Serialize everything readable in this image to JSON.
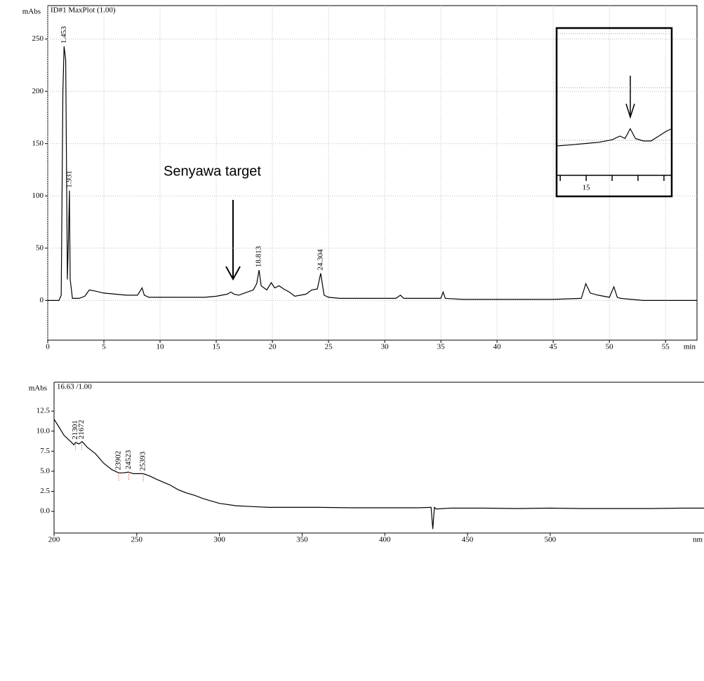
{
  "chart_data": [
    {
      "type": "line",
      "title": "ID#1 MaxPlot (1.00)",
      "y_label": "mAbs",
      "x_label": "min",
      "annotation": "Senyawa target",
      "color": "#000000",
      "grid": true,
      "xlim": [
        0,
        57.8
      ],
      "ylim": [
        -38,
        282
      ],
      "xticks": [
        0,
        5,
        10,
        15,
        20,
        25,
        30,
        35,
        40,
        45,
        50,
        55
      ],
      "yticks": [
        0,
        50,
        100,
        150,
        200,
        250
      ],
      "peaks": [
        1.453,
        1.931,
        18.813,
        24.304
      ],
      "x": [
        0,
        1.0,
        1.2,
        1.35,
        1.453,
        1.6,
        1.75,
        1.85,
        1.931,
        2.0,
        2.2,
        2.8,
        3.3,
        3.7,
        4.2,
        5,
        6,
        7,
        8,
        8.4,
        8.6,
        9,
        10,
        12,
        14,
        15,
        16,
        16.3,
        16.6,
        17,
        17.5,
        18.3,
        18.6,
        18.813,
        19.0,
        19.5,
        19.9,
        20.2,
        20.6,
        21,
        21.5,
        22,
        23,
        23.5,
        24,
        24.304,
        24.6,
        25,
        26,
        28,
        30,
        31,
        31.4,
        31.7,
        33,
        35,
        35.2,
        35.4,
        37,
        40,
        45,
        47.5,
        47.9,
        48.3,
        49,
        50,
        50.4,
        50.7,
        51,
        53,
        55,
        57.8
      ],
      "values": [
        0,
        0,
        5,
        200,
        243,
        230,
        20,
        60,
        105,
        20,
        2,
        2,
        4,
        10,
        9,
        7,
        6,
        5,
        5,
        12,
        5,
        3,
        3,
        3,
        3,
        4,
        6,
        8,
        6,
        5,
        7,
        10,
        16,
        29,
        14,
        10,
        17,
        12,
        14,
        11,
        8,
        4,
        6,
        10,
        11,
        26,
        5,
        3,
        2,
        2,
        2,
        2,
        5,
        2,
        2,
        2,
        8,
        2,
        1,
        1,
        1,
        2,
        16,
        7,
        5,
        3,
        13,
        3,
        2,
        0,
        0,
        0
      ]
    },
    {
      "type": "line",
      "color": "#000000",
      "xlim": [
        13.86,
        18.3
      ],
      "ylim": [
        -10,
        50
      ],
      "xticks": [
        15
      ],
      "xminorticks": [
        14,
        16,
        17,
        18
      ],
      "x": [
        13.86,
        14.5,
        15,
        15.5,
        16,
        16.3,
        16.5,
        16.7,
        16.9,
        17.2,
        17.5,
        17.8,
        18.1,
        18.3
      ],
      "values": [
        2,
        2.5,
        3,
        3.5,
        4.5,
        6,
        5,
        9,
        5,
        4,
        4,
        6,
        8,
        9
      ]
    },
    {
      "type": "line",
      "title": "16.63 /1.00",
      "y_label": "mAbs",
      "x_label": "nm",
      "color": "#000000",
      "grid": false,
      "xlim": [
        200,
        593
      ],
      "ylim": [
        -2.7,
        16.1
      ],
      "xticks": [
        200,
        250,
        300,
        350,
        400,
        450,
        500
      ],
      "yticks": [
        {
          "value": 0,
          "label": "0.0"
        },
        2.5,
        {
          "value": 5,
          "label": "5.0"
        },
        7.5,
        {
          "value": 10,
          "label": "10.0"
        },
        12.5
      ],
      "peaks": [
        {
          "value": 213.01,
          "label": "21301"
        },
        {
          "value": 216.72,
          "label": "21672"
        },
        {
          "value": 239.02,
          "label": "23902"
        },
        {
          "value": 245.23,
          "label": "24523"
        },
        {
          "value": 253.93,
          "label": "25393"
        }
      ],
      "x": [
        200,
        203,
        206,
        210,
        212,
        213,
        215,
        217,
        220,
        225,
        230,
        235,
        239,
        242,
        245,
        248,
        250,
        254,
        258,
        262,
        270,
        275,
        280,
        285,
        290,
        295,
        300,
        310,
        320,
        330,
        340,
        360,
        380,
        400,
        420,
        428,
        429,
        430,
        431,
        440,
        460,
        480,
        500,
        520,
        540,
        560,
        580,
        593
      ],
      "values": [
        11.5,
        10.5,
        9.5,
        8.7,
        8.3,
        8.6,
        8.4,
        8.7,
        8.0,
        7.2,
        6.0,
        5.2,
        4.8,
        4.8,
        4.9,
        4.7,
        4.7,
        4.7,
        4.4,
        4.0,
        3.3,
        2.7,
        2.3,
        2.0,
        1.6,
        1.3,
        1.0,
        0.7,
        0.6,
        0.5,
        0.5,
        0.5,
        0.45,
        0.45,
        0.45,
        0.5,
        -2.2,
        0.5,
        0.3,
        0.4,
        0.4,
        0.35,
        0.4,
        0.35,
        0.35,
        0.35,
        0.4,
        0.4
      ]
    }
  ]
}
